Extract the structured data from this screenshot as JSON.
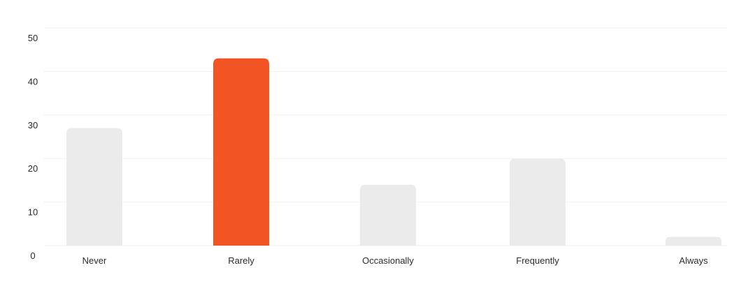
{
  "chart_data": {
    "type": "bar",
    "categories": [
      "Never",
      "Rarely",
      "Occasionally",
      "Frequently",
      "Always"
    ],
    "values": [
      27,
      43,
      14,
      20,
      2
    ],
    "highlight_index": 1,
    "ylim": [
      0,
      50
    ],
    "yticks": [
      0,
      10,
      20,
      30,
      40,
      50
    ],
    "grid": true,
    "title": "",
    "xlabel": "",
    "ylabel": ""
  },
  "colors": {
    "bar_default": "#ecebeb",
    "bar_highlight": "#f25424",
    "gridline": "#f3f2f2",
    "tick_text": "#2b2b2b",
    "background": "#ffffff"
  }
}
